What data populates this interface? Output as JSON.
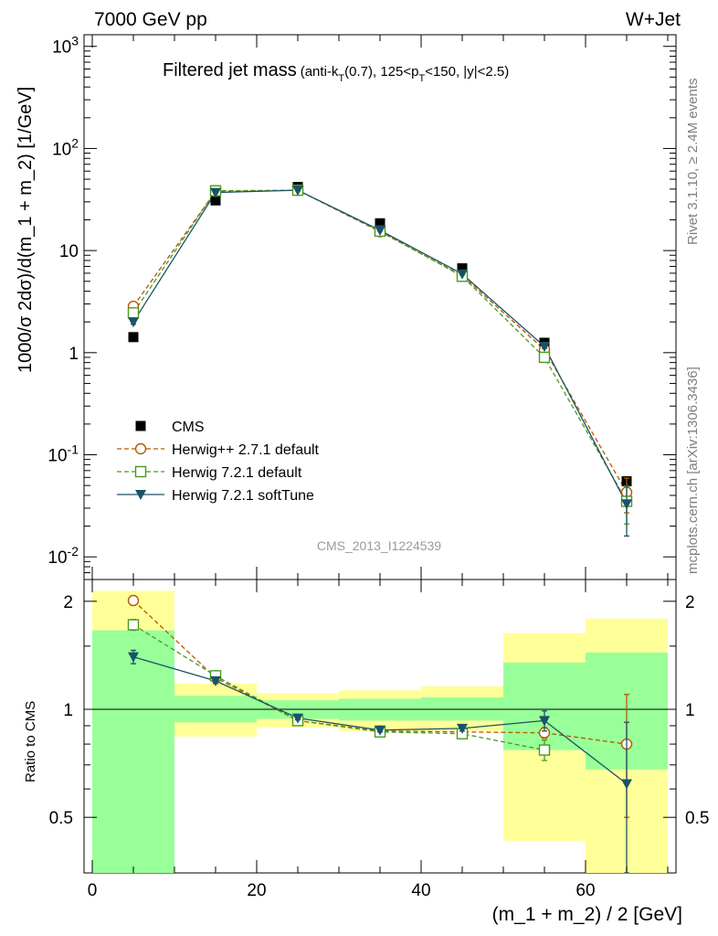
{
  "header": {
    "left": "7000 GeV pp",
    "right": "W+Jet"
  },
  "side_texts": {
    "rivet": "Rivet 3.1.10, ≥ 2.4M events",
    "mcplots": "mcplots.cern.ch [arXiv:1306.3436]"
  },
  "legend": {
    "items": [
      "CMS",
      "Herwig++ 2.7.1 default",
      "Herwig 7.2.1 default",
      "Herwig 7.2.1 softTune"
    ]
  },
  "chart_data": [
    {
      "type": "scatter",
      "title": "Filtered jet mass",
      "title_detail": "(anti-k_T(0.7), 125<p_T<150, |y|<2.5)",
      "watermark": "CMS_2013_I1224539",
      "xlabel": "",
      "ylabel": "1000/σ 2dσ)/d(m_1 + m_2) [1/GeV]",
      "log_y": true,
      "xlim": [
        -1,
        71
      ],
      "ylim": [
        0.006,
        1300
      ],
      "x": [
        5,
        15,
        25,
        35,
        45,
        55,
        65
      ],
      "y_tick_labels": [
        "10^{-2}",
        "10^{-1}",
        "1",
        "10",
        "10^{2}",
        "10^{3}"
      ],
      "series": [
        {
          "name": "CMS",
          "color": "#000000",
          "marker": "square",
          "values": [
            1.42,
            31,
            42,
            18.5,
            6.7,
            1.25,
            0.055
          ]
        },
        {
          "name": "Herwig++ 2.7.1 default",
          "color": "#b35900",
          "marker": "open-circle",
          "style": "dashed",
          "values": [
            2.85,
            38,
            39,
            15.3,
            5.7,
            1.07,
            0.043
          ],
          "errors": [
            0.1,
            0.5,
            0.5,
            0.2,
            0.1,
            0.04,
            0.016
          ]
        },
        {
          "name": "Herwig 7.2.1 default",
          "color": "#4a9a1e",
          "marker": "open-square",
          "style": "dashed",
          "values": [
            2.45,
            38.5,
            39,
            15.5,
            5.6,
            0.9,
            0.035
          ],
          "errors": [
            0.1,
            0.5,
            0.5,
            0.2,
            0.1,
            0.04,
            0.014
          ]
        },
        {
          "name": "Herwig 7.2.1 softTune",
          "color": "#1a5266",
          "marker": "filled-triangle-down",
          "style": "solid",
          "values": [
            2.0,
            37,
            39,
            15.8,
            5.9,
            1.15,
            0.033
          ],
          "errors": [
            0.1,
            0.5,
            0.5,
            0.2,
            0.1,
            0.05,
            0.017
          ]
        }
      ]
    },
    {
      "type": "scatter",
      "title": "",
      "xlabel": "(m_1 + m_2) / 2 [GeV]",
      "ylabel": "Ratio to CMS",
      "xlim": [
        -1,
        71
      ],
      "ylim": [
        0.35,
        2.3
      ],
      "x_ticks": [
        0,
        20,
        40,
        60
      ],
      "y_ticks": [
        0.5,
        1,
        2
      ],
      "bins": [
        [
          0,
          10
        ],
        [
          10,
          20
        ],
        [
          20,
          30
        ],
        [
          30,
          40
        ],
        [
          40,
          50
        ],
        [
          50,
          60
        ],
        [
          60,
          70
        ]
      ],
      "band_inner": [
        [
          0.35,
          1.66
        ],
        [
          0.92,
          1.09
        ],
        [
          0.94,
          1.06
        ],
        [
          0.93,
          1.07
        ],
        [
          0.93,
          1.08
        ],
        [
          0.77,
          1.35
        ],
        [
          0.68,
          1.44
        ]
      ],
      "band_outer": [
        [
          0.35,
          2.14
        ],
        [
          0.84,
          1.18
        ],
        [
          0.89,
          1.11
        ],
        [
          0.87,
          1.13
        ],
        [
          0.87,
          1.16
        ],
        [
          0.43,
          1.63
        ],
        [
          0.35,
          1.79
        ]
      ],
      "band_colors": {
        "inner": "#99ff99",
        "outer": "#ffff99"
      },
      "x": [
        5,
        15,
        25,
        35,
        45,
        55,
        65
      ],
      "series": [
        {
          "name": "Herwig++ 2.7.1 default",
          "color": "#b35900",
          "values": [
            2.01,
            1.225,
            0.93,
            0.87,
            0.865,
            0.86,
            0.8
          ],
          "errors": [
            0.06,
            0.02,
            0.01,
            0.01,
            0.015,
            0.03,
            0.3
          ]
        },
        {
          "name": "Herwig 7.2.1 default",
          "color": "#4a9a1e",
          "values": [
            1.72,
            1.24,
            0.93,
            0.865,
            0.855,
            0.77,
            null
          ],
          "errors": [
            0.06,
            0.02,
            0.01,
            0.01,
            0.015,
            0.05,
            null
          ]
        },
        {
          "name": "Herwig 7.2.1 softTune",
          "color": "#1a5266",
          "values": [
            1.4,
            1.2,
            0.945,
            0.875,
            0.885,
            0.93,
            0.62
          ],
          "errors": [
            0.06,
            0.02,
            0.01,
            0.01,
            0.015,
            0.06,
            0.3
          ]
        }
      ]
    }
  ]
}
